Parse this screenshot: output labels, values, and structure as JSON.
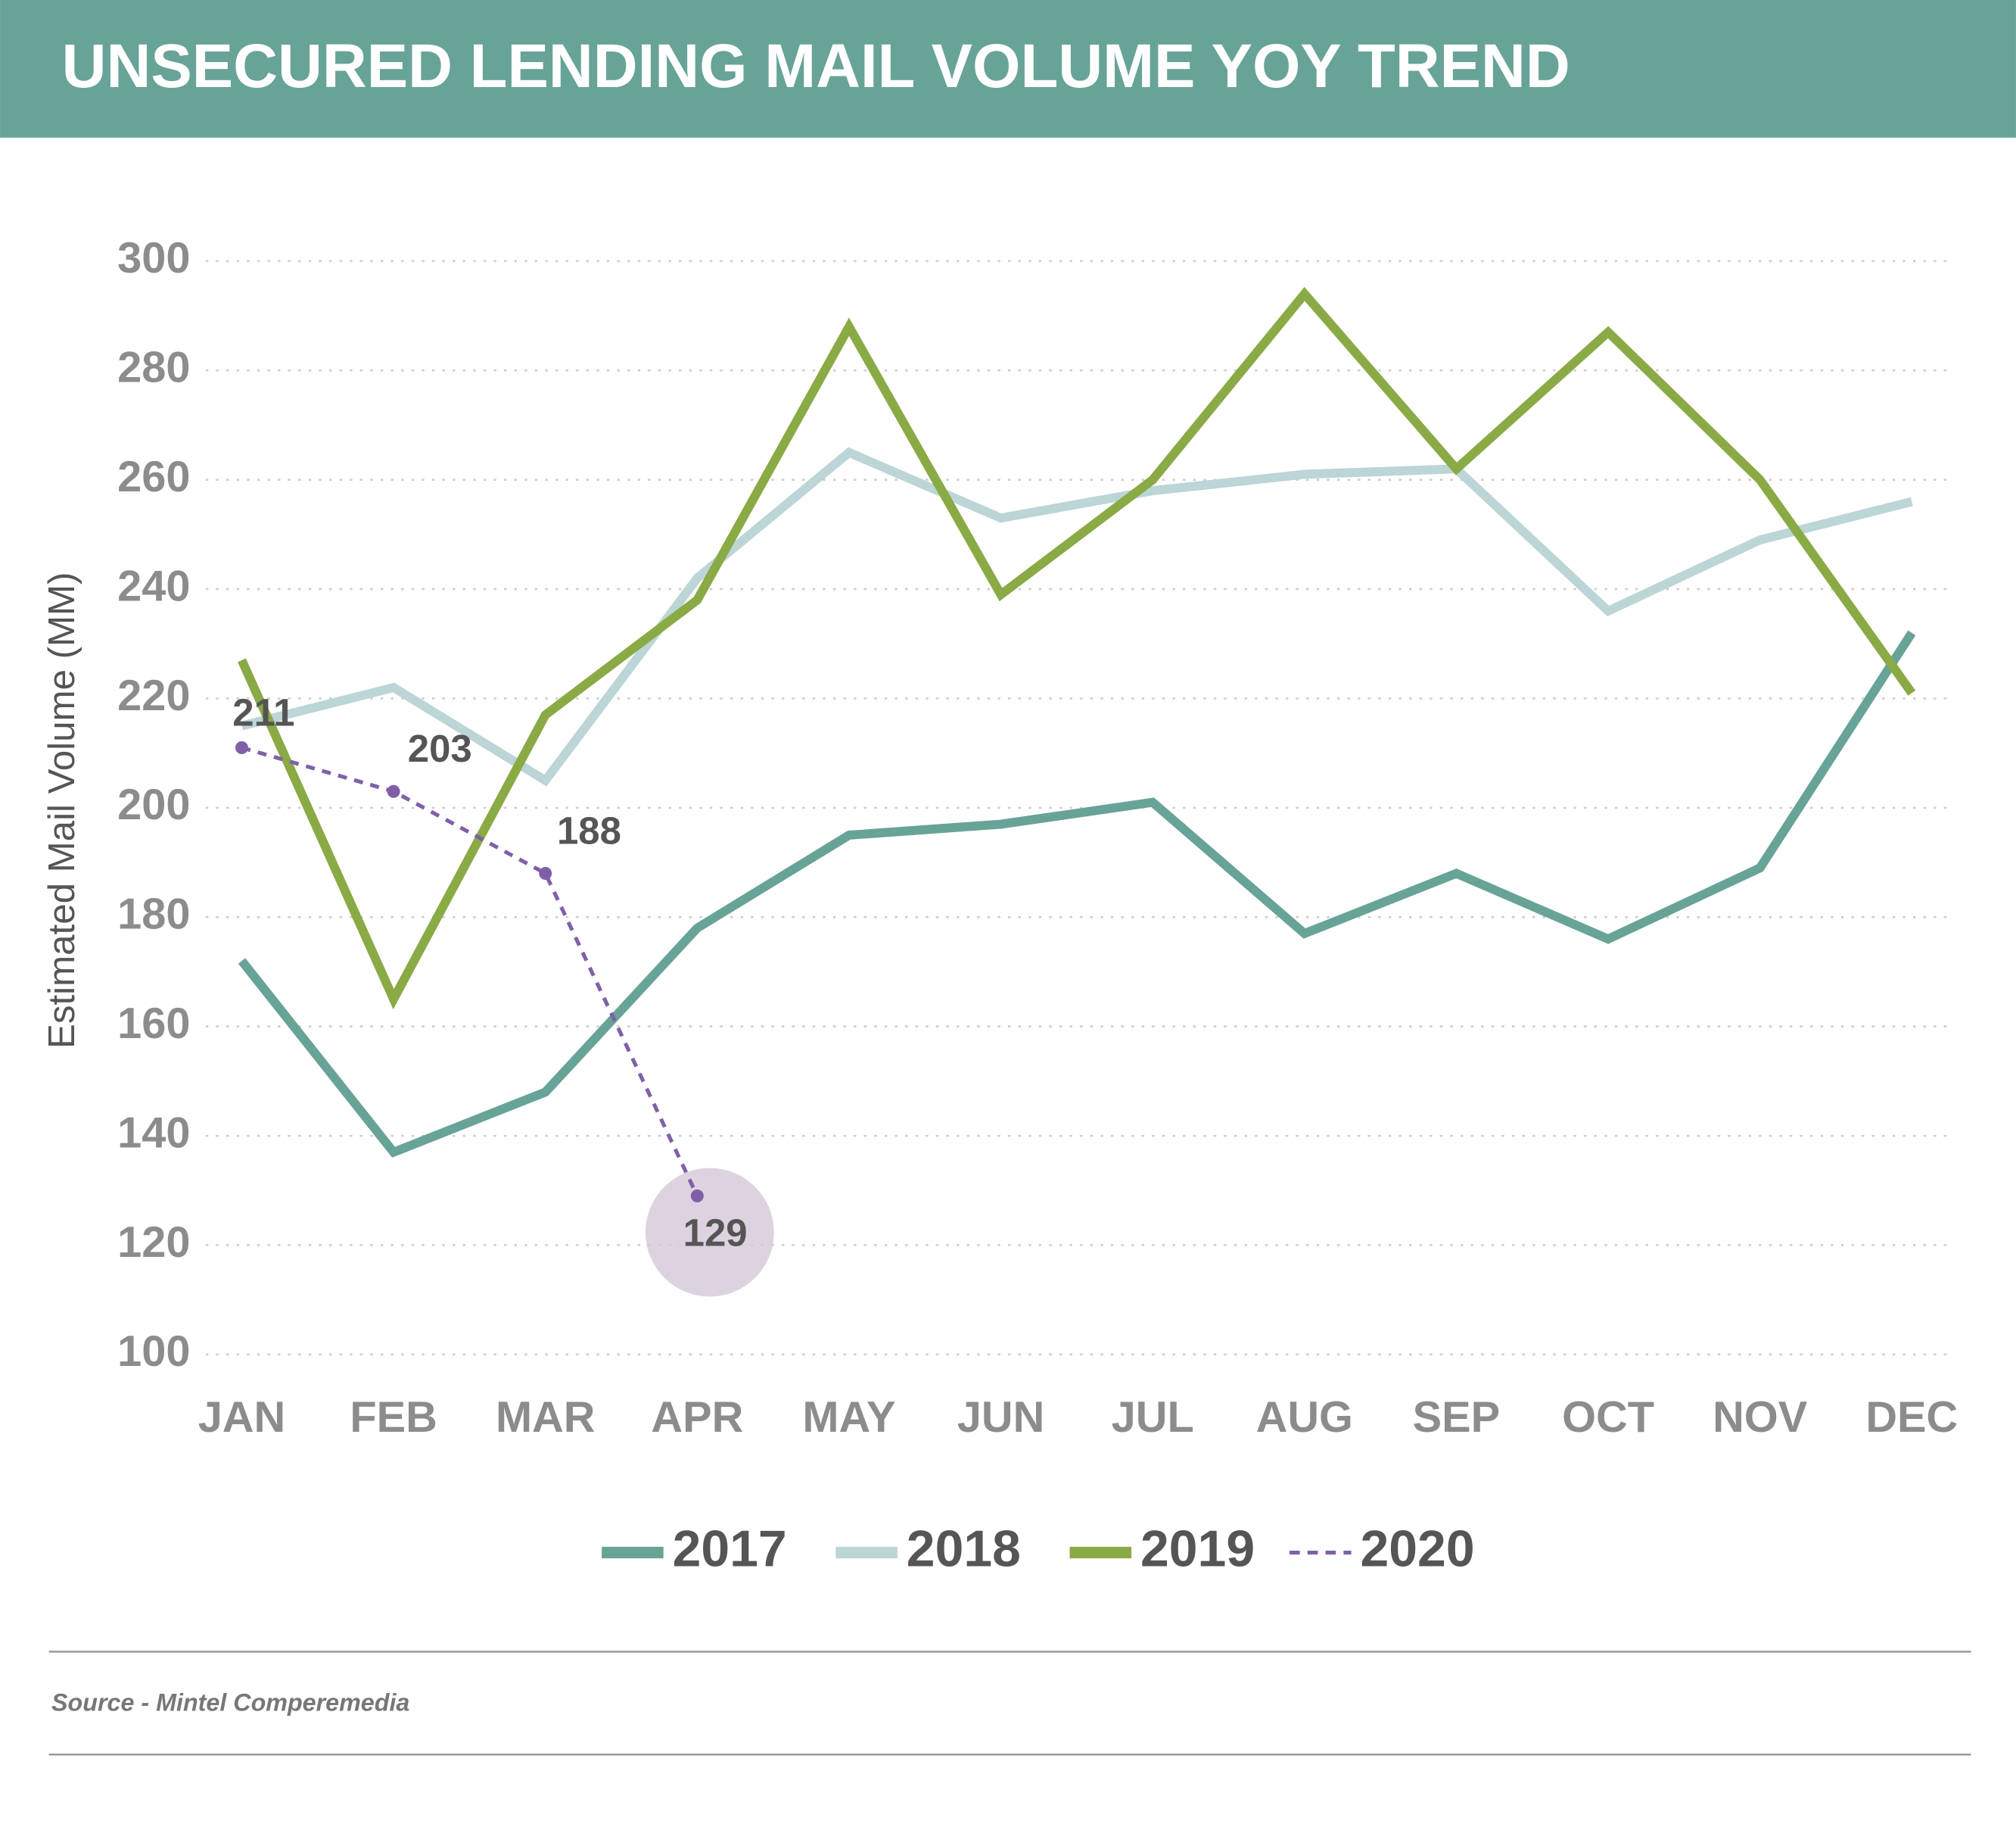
{
  "chart_data": {
    "type": "line",
    "title": "UNSECURED LENDING MAIL VOLUME YOY TREND",
    "y_label": "Estimated Mail Volume (MM)",
    "source": "Source - Mintel Comperemedia",
    "categories": [
      "JAN",
      "FEB",
      "MAR",
      "APR",
      "MAY",
      "JUN",
      "JUL",
      "AUG",
      "SEP",
      "OCT",
      "NOV",
      "DEC"
    ],
    "ylim": [
      100,
      300
    ],
    "yticks": [
      100,
      120,
      140,
      160,
      180,
      200,
      220,
      240,
      260,
      280,
      300
    ],
    "grid": true,
    "series": [
      {
        "name": "2017",
        "color": "#68a397",
        "values": [
          172,
          137,
          148,
          178,
          195,
          197,
          201,
          177,
          188,
          176,
          189,
          232
        ]
      },
      {
        "name": "2018",
        "color": "#bcd5d6",
        "values": [
          215,
          222,
          205,
          242,
          265,
          253,
          258,
          261,
          262,
          236,
          249,
          256
        ]
      },
      {
        "name": "2019",
        "color": "#8aaa45",
        "values": [
          227,
          165,
          217,
          238,
          288,
          239,
          260,
          294,
          262,
          287,
          260,
          221
        ]
      },
      {
        "name": "2020",
        "color": "#7f60a8",
        "dashed": true,
        "data_labels": true,
        "values": [
          211,
          203,
          188,
          129,
          null,
          null,
          null,
          null,
          null,
          null,
          null,
          null
        ]
      }
    ]
  }
}
